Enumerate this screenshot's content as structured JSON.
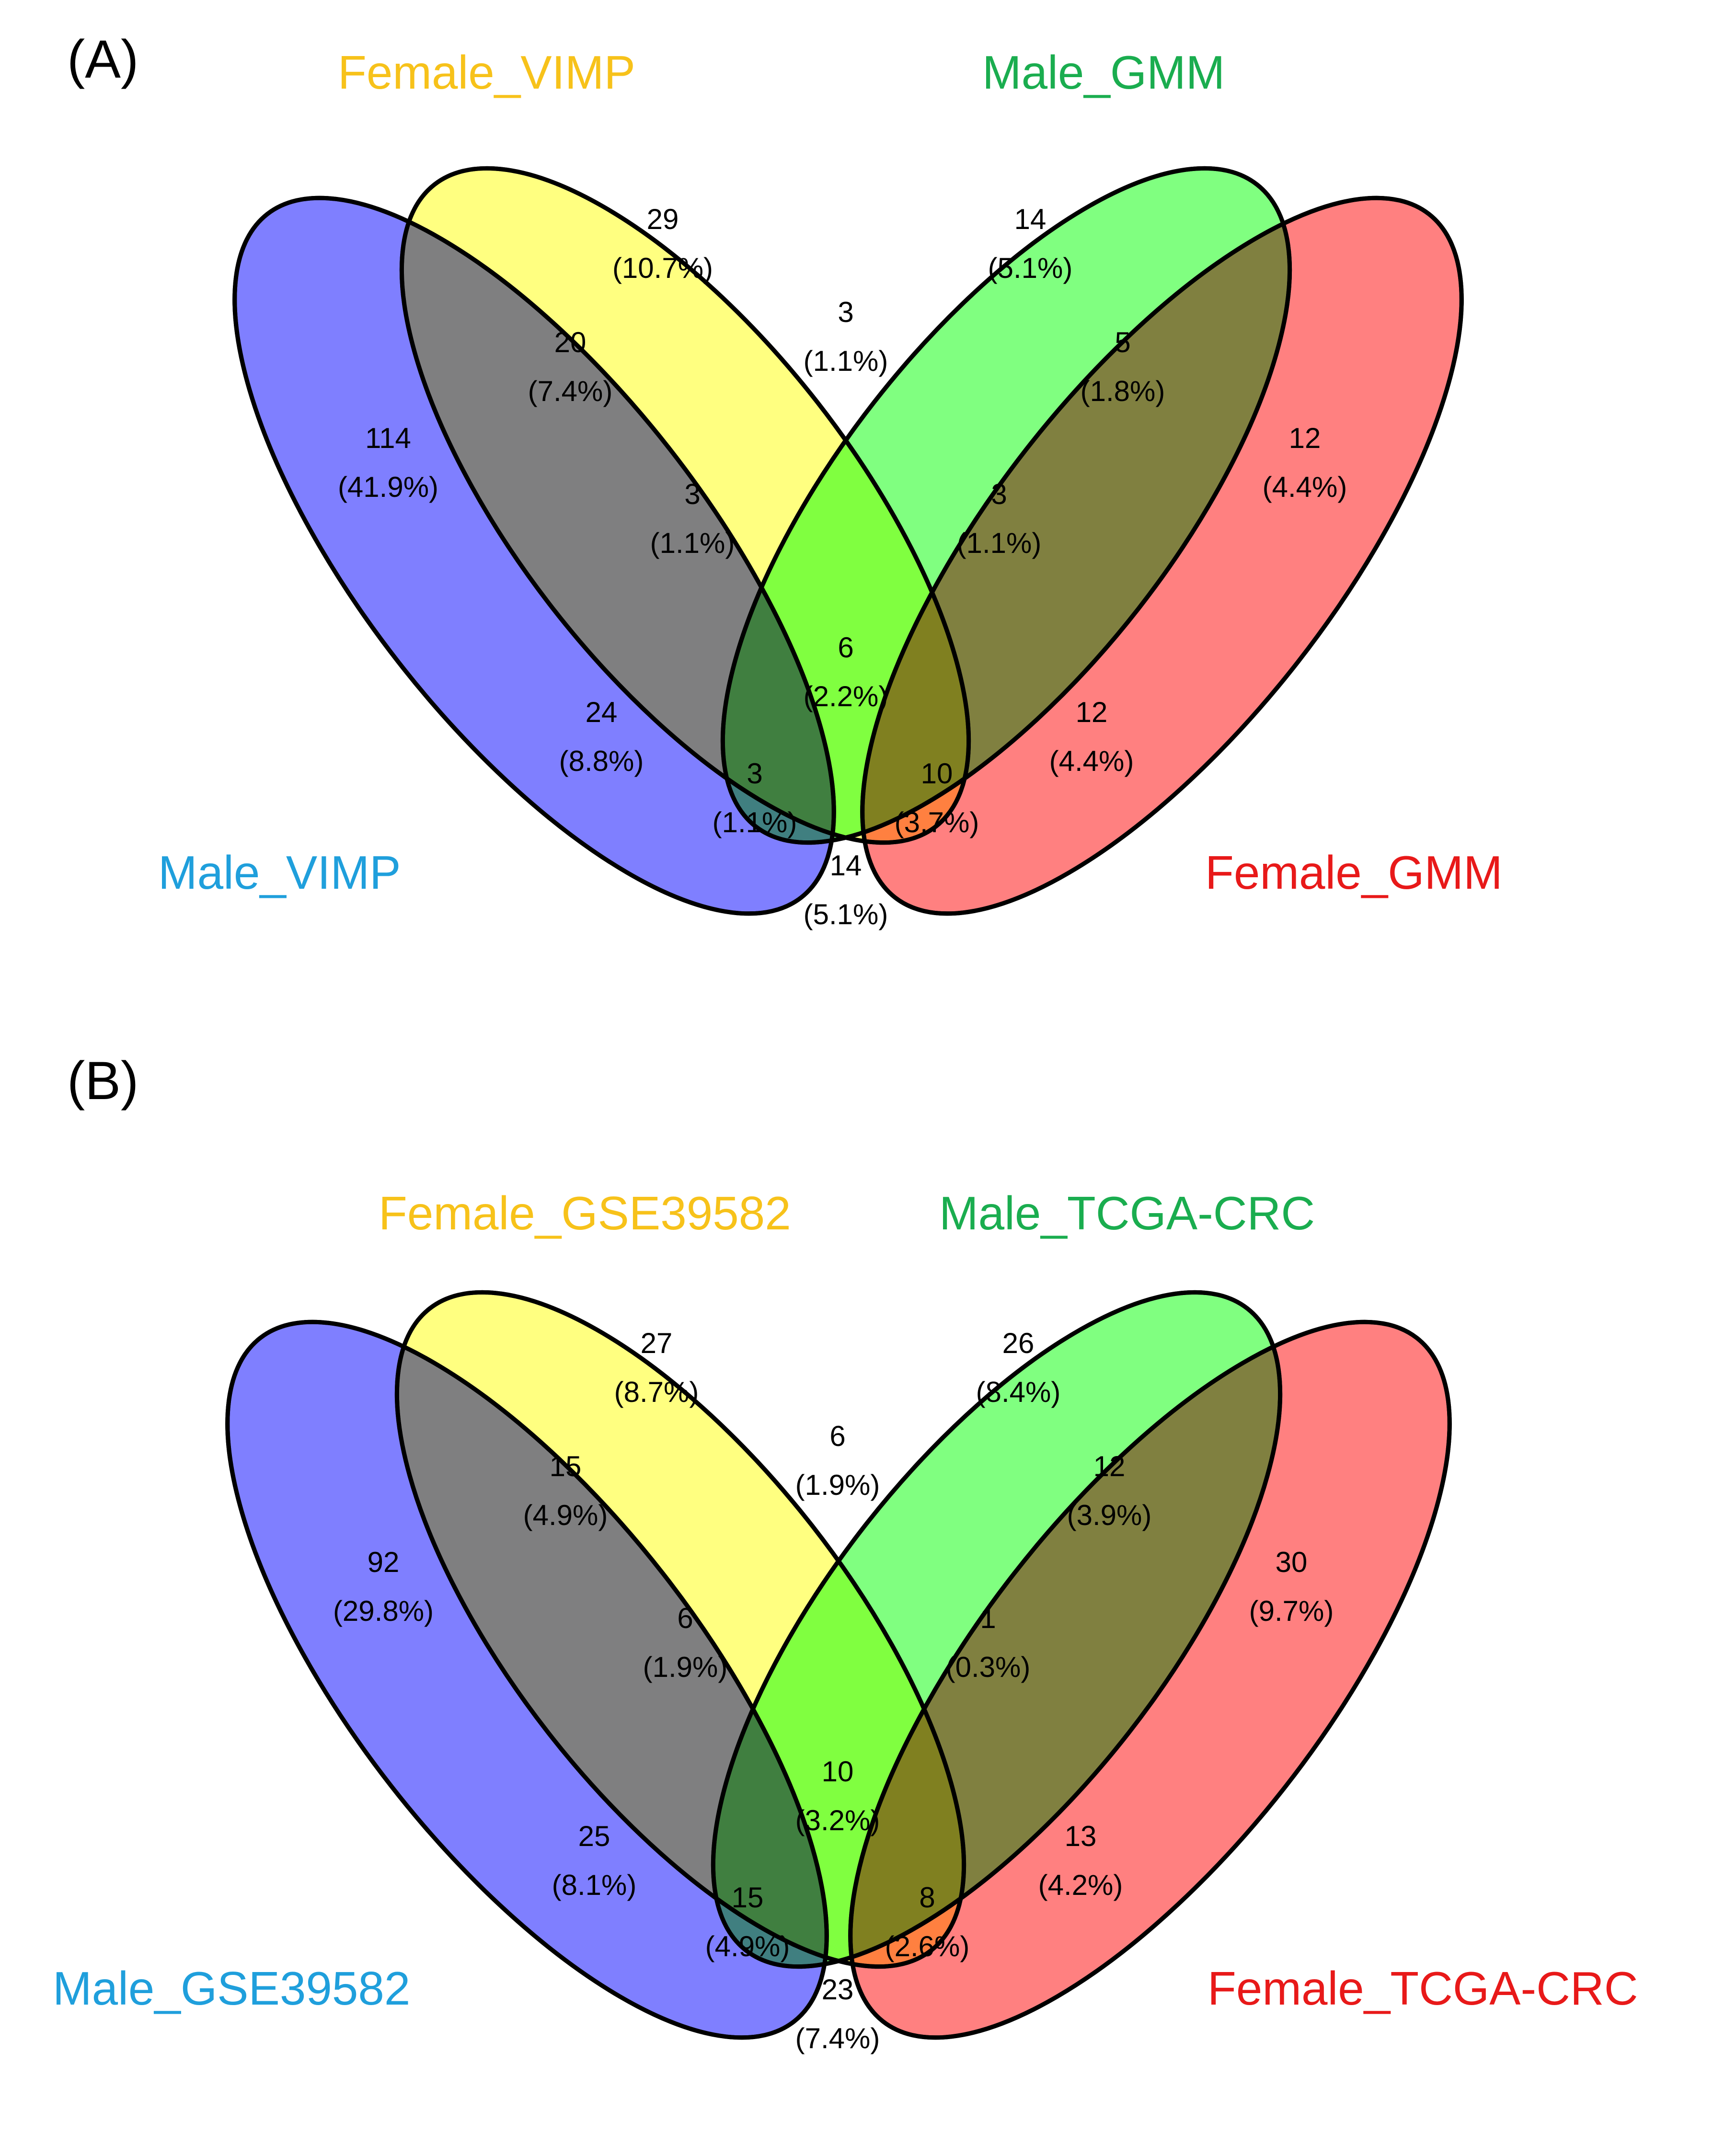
{
  "colors": {
    "blue": "#7f7fff",
    "yellow": "#ffff80",
    "green": "#80ff80",
    "red": "#ff8080",
    "label_blue": "#1f9fdc",
    "label_yellow": "#f7c21a",
    "label_green": "#1aad4f",
    "label_red": "#e81919"
  },
  "panels": [
    {
      "label": "(A)",
      "sets": [
        "Male_VIMP",
        "Female_VIMP",
        "Male_GMM",
        "Female_GMM"
      ],
      "regions": {
        "A": {
          "count": "114",
          "pct": "(41.9%)"
        },
        "B": {
          "count": "29",
          "pct": "(10.7%)"
        },
        "C": {
          "count": "14",
          "pct": "(5.1%)"
        },
        "D": {
          "count": "12",
          "pct": "(4.4%)"
        },
        "AB": {
          "count": "20",
          "pct": "(7.4%)"
        },
        "BC": {
          "count": "3",
          "pct": "(1.1%)"
        },
        "CD": {
          "count": "5",
          "pct": "(1.8%)"
        },
        "ABC": {
          "count": "3",
          "pct": "(1.1%)"
        },
        "BCD": {
          "count": "3",
          "pct": "(1.1%)"
        },
        "ABCD": {
          "count": "6",
          "pct": "(2.2%)"
        },
        "AC": {
          "count": "24",
          "pct": "(8.8%)"
        },
        "BD": {
          "count": "12",
          "pct": "(4.4%)"
        },
        "ACD": {
          "count": "3",
          "pct": "(1.1%)"
        },
        "ABD": {
          "count": "10",
          "pct": "(3.7%)"
        },
        "AD": {
          "count": "14",
          "pct": "(5.1%)"
        }
      }
    },
    {
      "label": "(B)",
      "sets": [
        "Male_GSE39582",
        "Female_GSE39582",
        "Male_TCGA-CRC",
        "Female_TCGA-CRC"
      ],
      "regions": {
        "A": {
          "count": "92",
          "pct": "(29.8%)"
        },
        "B": {
          "count": "27",
          "pct": "(8.7%)"
        },
        "C": {
          "count": "26",
          "pct": "(8.4%)"
        },
        "D": {
          "count": "30",
          "pct": "(9.7%)"
        },
        "AB": {
          "count": "15",
          "pct": "(4.9%)"
        },
        "BC": {
          "count": "6",
          "pct": "(1.9%)"
        },
        "CD": {
          "count": "12",
          "pct": "(3.9%)"
        },
        "ABC": {
          "count": "6",
          "pct": "(1.9%)"
        },
        "BCD": {
          "count": "1",
          "pct": "(0.3%)"
        },
        "ABCD": {
          "count": "10",
          "pct": "(3.2%)"
        },
        "AC": {
          "count": "25",
          "pct": "(8.1%)"
        },
        "BD": {
          "count": "13",
          "pct": "(4.2%)"
        },
        "ACD": {
          "count": "15",
          "pct": "(4.9%)"
        },
        "ABD": {
          "count": "8",
          "pct": "(2.6%)"
        },
        "AD": {
          "count": "23",
          "pct": "(7.4%)"
        }
      }
    }
  ]
}
